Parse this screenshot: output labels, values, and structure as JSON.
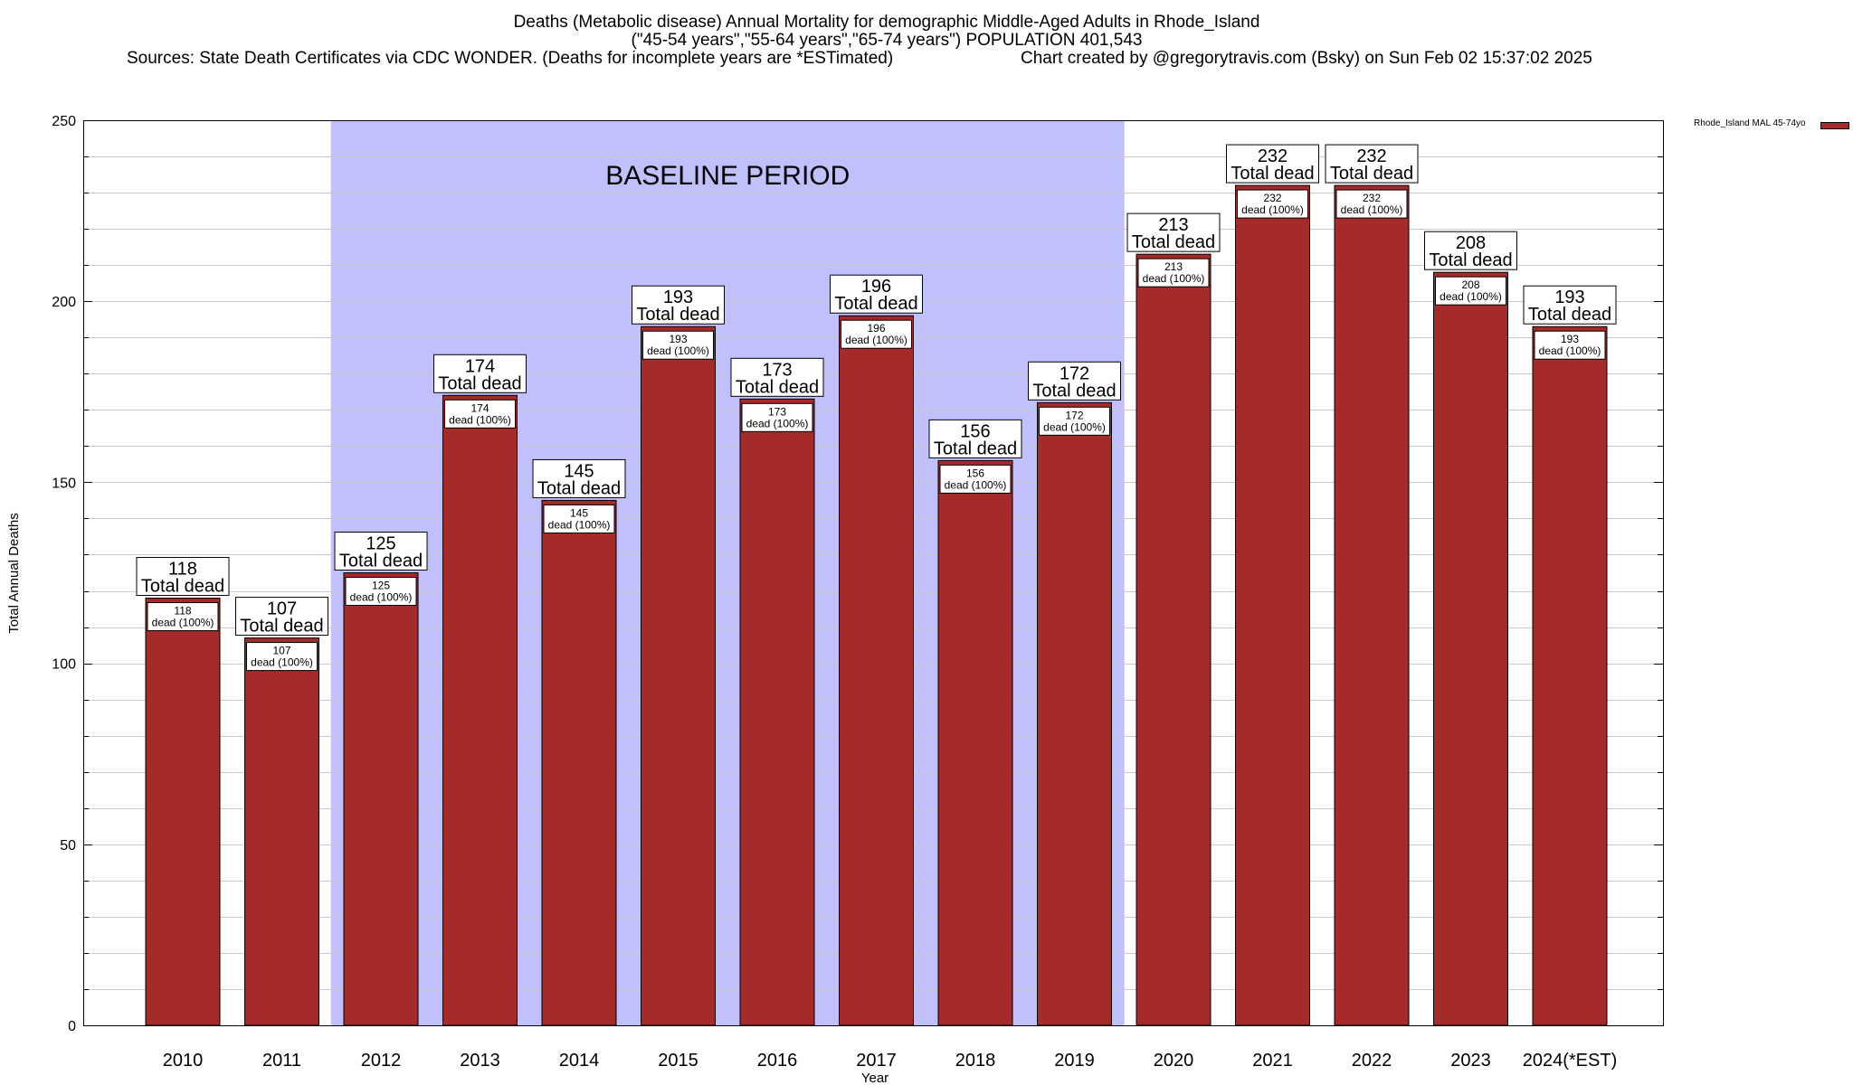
{
  "header": {
    "title_line1": "Deaths (Metabolic disease) Annual Mortality for demographic Middle-Aged Adults in Rhode_Island",
    "title_line2": "(\"45-54 years\",\"55-64 years\",\"65-74 years\") POPULATION 401,543",
    "sources": "Sources: State Death Certificates via CDC WONDER. (Deaths for incomplete years are *ESTimated)",
    "credit": "Chart created by @gregorytravis.com (Bsky) on Sun Feb 02 15:37:02 2025"
  },
  "legend": {
    "label": "Rhode_Island MAL 45-74yo"
  },
  "colors": {
    "bar": "#a52a2a",
    "baseline": "#c0c0fc",
    "grid": "#c8c8c8"
  },
  "chart_data": {
    "type": "bar",
    "title": "Deaths (Metabolic disease) Annual Mortality for demographic Middle-Aged Adults in Rhode_Island",
    "xlabel": "Year",
    "ylabel": "Total Annual Deaths",
    "ylim": [
      0,
      250
    ],
    "yticks": [
      0,
      50,
      100,
      150,
      200,
      250
    ],
    "grid": true,
    "legend_position": "top-right",
    "categories": [
      "2010",
      "2011",
      "2012",
      "2013",
      "2014",
      "2015",
      "2016",
      "2017",
      "2018",
      "2019",
      "2020",
      "2021",
      "2022",
      "2023",
      "2024(*EST)"
    ],
    "series": [
      {
        "name": "Rhode_Island MAL 45-74yo",
        "values": [
          118,
          107,
          125,
          174,
          145,
          193,
          173,
          196,
          156,
          172,
          213,
          232,
          232,
          208,
          193
        ]
      }
    ],
    "top_label_suffix": "Total dead",
    "inner_label_suffix": "dead (100%)",
    "baseline_period": {
      "label": "BASELINE PERIOD",
      "start": "2012",
      "end": "2019"
    }
  }
}
